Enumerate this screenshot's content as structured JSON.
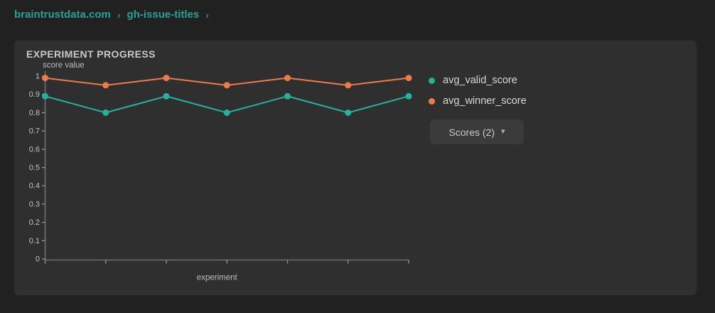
{
  "breadcrumb": {
    "items": [
      "braintrustdata.com",
      "gh-issue-titles"
    ],
    "separator": "›"
  },
  "panel": {
    "title": "EXPERIMENT PROGRESS"
  },
  "legend": {
    "items": [
      {
        "label": "avg_valid_score",
        "color": "#25b299",
        "dot_icon": "circle"
      },
      {
        "label": "avg_winner_score",
        "color": "#ec7b4a",
        "dot_icon": "circle"
      }
    ]
  },
  "scores_dropdown": {
    "label": "Scores (2)",
    "caret_icon": "chevron-down",
    "caret": "▾"
  },
  "chart_data": {
    "type": "line",
    "title": "EXPERIMENT PROGRESS",
    "xlabel": "experiment",
    "ylabel": "score value",
    "categories": [
      "",
      "",
      "",
      "",
      "",
      "",
      ""
    ],
    "series": [
      {
        "name": "avg_valid_score",
        "color": "#25b299",
        "values": [
          0.89,
          0.8,
          0.89,
          0.8,
          0.89,
          0.8,
          0.89
        ]
      },
      {
        "name": "avg_winner_score",
        "color": "#ec7b4a",
        "values": [
          0.99,
          0.95,
          0.99,
          0.95,
          0.99,
          0.95,
          0.99
        ]
      }
    ],
    "ylim": [
      0,
      1
    ],
    "yticks": [
      0,
      0.1,
      0.2,
      0.3,
      0.4,
      0.5,
      0.6,
      0.7,
      0.8,
      0.9,
      1
    ],
    "x_tick_labels_shown": false,
    "grid": false,
    "markers": true,
    "legend_position": "right"
  },
  "colors": {
    "page_bg": "#212121",
    "panel_bg": "#2f2f30",
    "breadcrumb_link": "#2aa095",
    "series_valid": "#25b299",
    "series_winner": "#ec7b4a",
    "axis": "#6f6f6f",
    "tick_label": "#c2c2c2",
    "panel_title": "#c9c9c9",
    "legend_text": "#d8d8d8",
    "dropdown_bg": "#3b3b3b",
    "dropdown_text": "#c9c9c9"
  }
}
